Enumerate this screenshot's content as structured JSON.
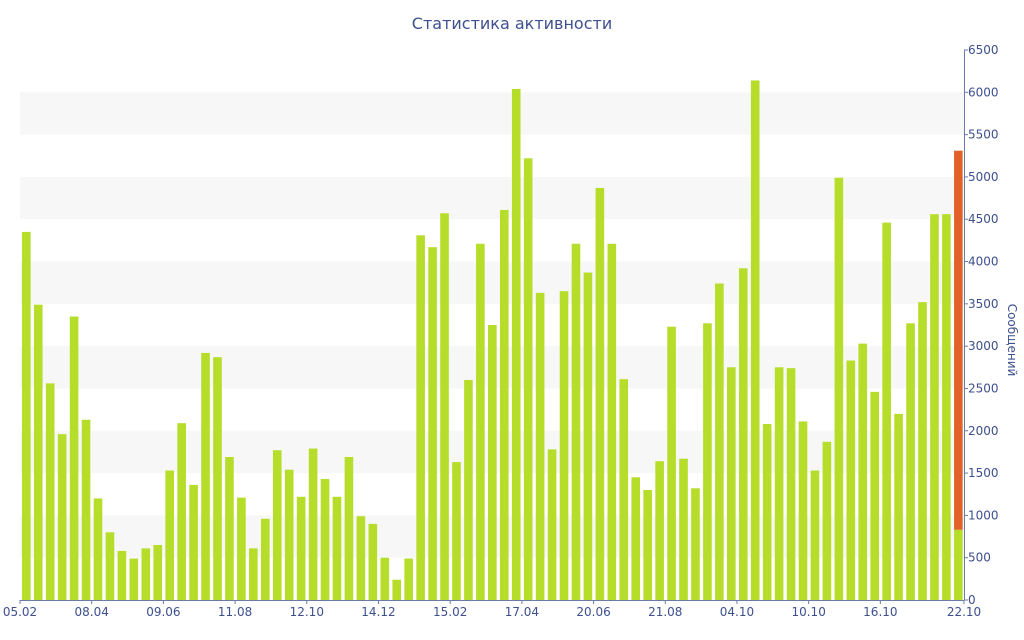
{
  "chart_data": {
    "type": "bar",
    "title": "Статистика активности",
    "xlabel": "",
    "ylabel": "Сообщений",
    "ylim": [
      0,
      6500
    ],
    "yticks": [
      0,
      500,
      1000,
      1500,
      2000,
      2500,
      3000,
      3500,
      4000,
      4500,
      5000,
      5500,
      6000,
      6500
    ],
    "y_axis_position": "right",
    "grid": "alternating horizontal bands",
    "xtick_labels": [
      {
        "index": 0,
        "label": "05.02"
      },
      {
        "index": 6,
        "label": "08.04"
      },
      {
        "index": 12,
        "label": "09.06"
      },
      {
        "index": 18,
        "label": "11.08"
      },
      {
        "index": 24,
        "label": "12.10"
      },
      {
        "index": 30,
        "label": "14.12"
      },
      {
        "index": 36,
        "label": "15.02"
      },
      {
        "index": 42,
        "label": "17.04"
      },
      {
        "index": 48,
        "label": "20.06"
      },
      {
        "index": 54,
        "label": "21.08"
      },
      {
        "index": 60,
        "label": "04.10"
      },
      {
        "index": 66,
        "label": "10.10"
      },
      {
        "index": 72,
        "label": "16.10"
      },
      {
        "index": 78,
        "label": "22.10"
      }
    ],
    "series": [
      {
        "color": "#b5dd2a",
        "values": [
          4350,
          3490,
          2560,
          1960,
          3350,
          2130,
          1200,
          800,
          580,
          490,
          610,
          650,
          1530,
          2090,
          1360,
          2920,
          2870,
          1690,
          1210,
          610,
          960,
          1770,
          1540,
          1220,
          1790,
          1430,
          1220,
          1690,
          990,
          900,
          500,
          240,
          490,
          4310,
          4170,
          4570,
          1630,
          2600,
          4210,
          3250,
          4610,
          6040,
          5220,
          3630,
          1780,
          3650,
          4210,
          3870,
          4870,
          4210,
          2610,
          1450,
          1300,
          1640,
          3230,
          1670,
          1320,
          3270,
          3740,
          2750,
          3920,
          6140,
          2080,
          2750,
          2740,
          2110,
          1530,
          1870,
          4990,
          2830,
          3030,
          2460,
          4460,
          2200,
          3270,
          3520,
          4560,
          4560,
          830
        ]
      },
      {
        "color": "#e0622a",
        "values": [
          0,
          0,
          0,
          0,
          0,
          0,
          0,
          0,
          0,
          0,
          0,
          0,
          0,
          0,
          0,
          0,
          0,
          0,
          0,
          0,
          0,
          0,
          0,
          0,
          0,
          0,
          0,
          0,
          0,
          0,
          0,
          0,
          0,
          0,
          0,
          0,
          0,
          0,
          0,
          0,
          0,
          0,
          0,
          0,
          0,
          0,
          0,
          0,
          0,
          0,
          0,
          0,
          0,
          0,
          0,
          0,
          0,
          0,
          0,
          0,
          0,
          0,
          0,
          0,
          0,
          0,
          0,
          0,
          0,
          0,
          0,
          0,
          0,
          0,
          0,
          0,
          0,
          0,
          4480
        ]
      }
    ]
  }
}
